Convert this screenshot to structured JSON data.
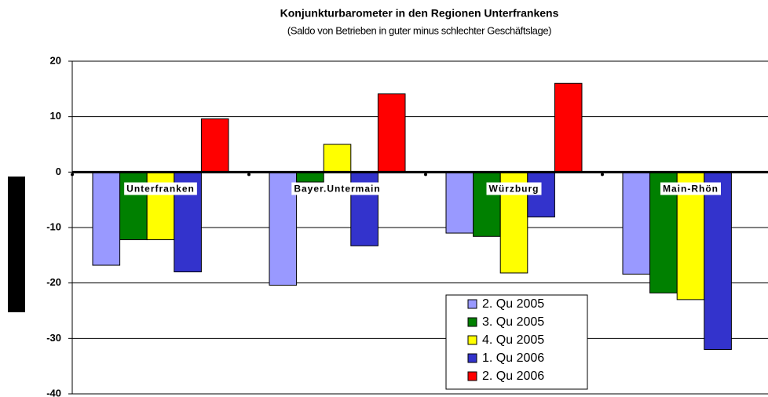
{
  "chart_data": {
    "type": "bar",
    "title": "Konjunkturbarometer in den Regionen Unterfrankens",
    "subtitle": "(Saldo von Betrieben in guter minus schlechter Geschäftslage)",
    "categories": [
      "Unterfranken",
      "Bayer.Untermain",
      "Würzburg",
      "Main-Rhön"
    ],
    "series": [
      {
        "name": "2. Qu 2005",
        "color": "#9999ff",
        "values": [
          -16.8,
          -20.4,
          -11,
          -18.4
        ]
      },
      {
        "name": "3. Qu 2005",
        "color": "#008000",
        "values": [
          -12.2,
          -1.8,
          -11.6,
          -21.8
        ]
      },
      {
        "name": "4. Qu 2005",
        "color": "#ffff00",
        "values": [
          -12.2,
          5,
          -18.2,
          -23
        ]
      },
      {
        "name": "1. Qu 2006",
        "color": "#3333cc",
        "values": [
          -18,
          -13.3,
          -8.1,
          -32
        ]
      },
      {
        "name": "2. Qu 2006",
        "color": "#ff0000",
        "values": [
          9.6,
          14.1,
          16,
          null
        ]
      }
    ],
    "ylim": [
      -40,
      20
    ],
    "yticks": [
      -40,
      -30,
      -20,
      -10,
      0,
      10,
      20
    ],
    "grid": true,
    "legend": "lower-right"
  }
}
